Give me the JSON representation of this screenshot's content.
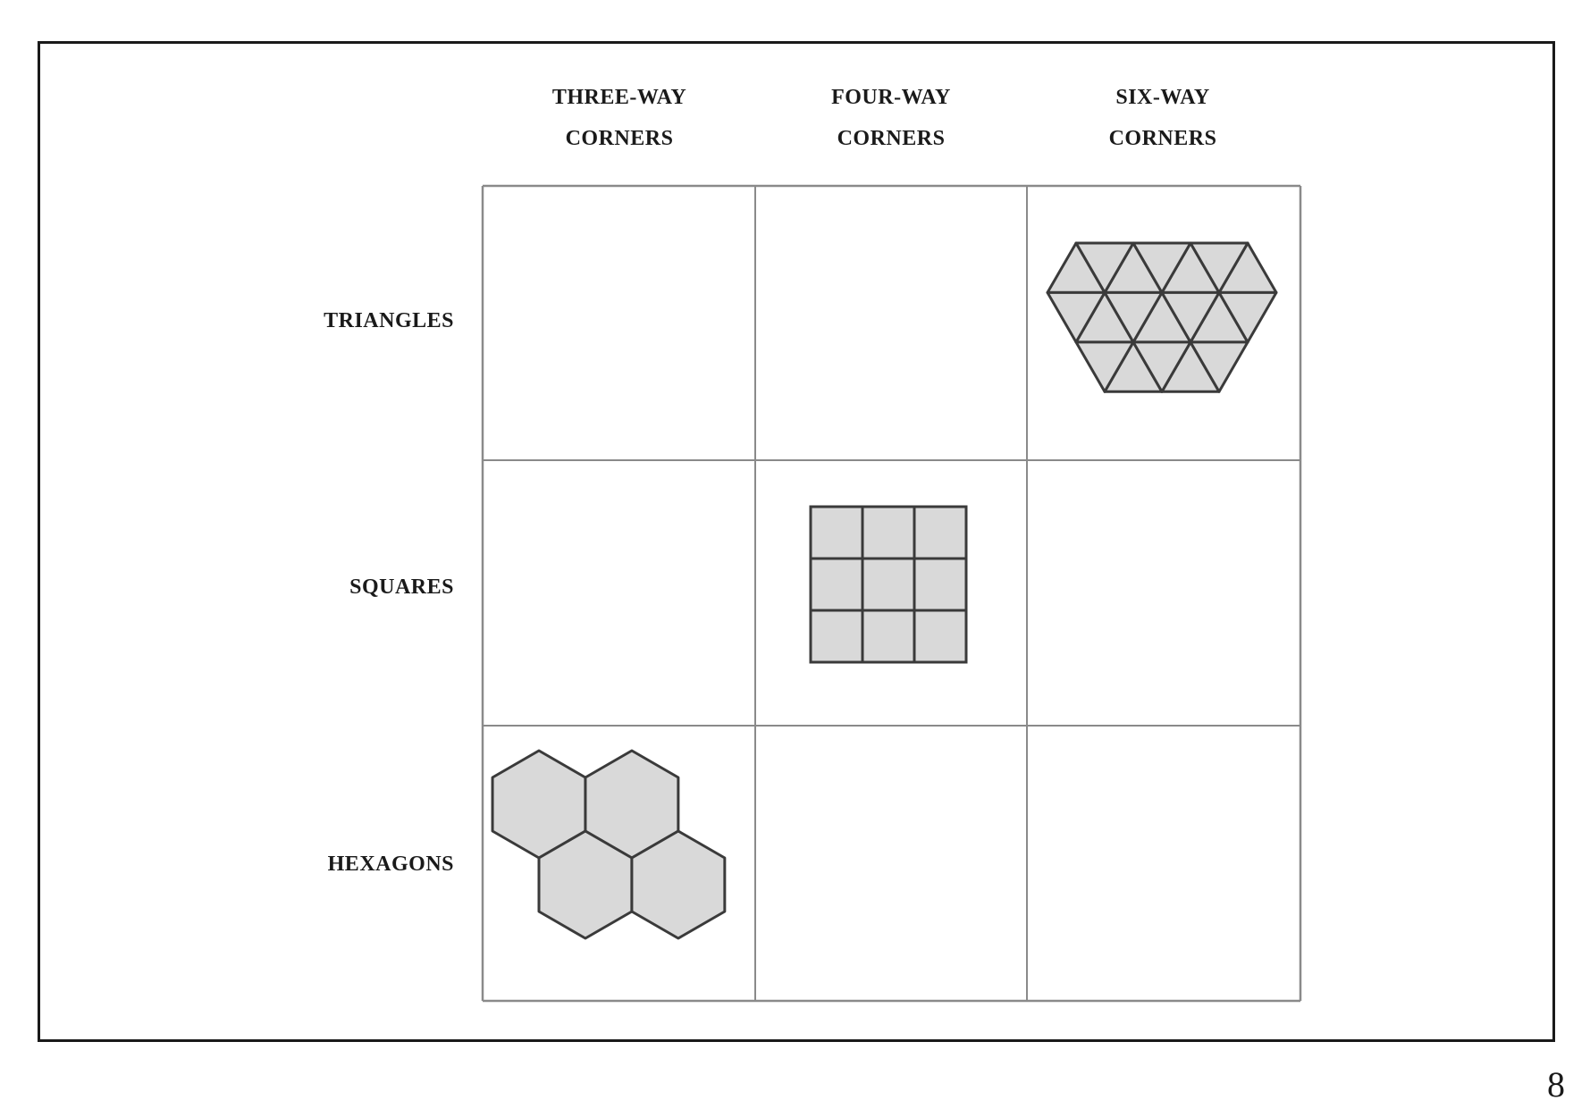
{
  "columns": [
    {
      "line1": "THREE-WAY",
      "line2": "CORNERS"
    },
    {
      "line1": "FOUR-WAY",
      "line2": "CORNERS"
    },
    {
      "line1": "SIX-WAY",
      "line2": "CORNERS"
    }
  ],
  "rows": [
    {
      "label": "TRIANGLES"
    },
    {
      "label": "SQUARES"
    },
    {
      "label": "HEXAGONS"
    }
  ],
  "tilings": [
    {
      "shape": "triangles",
      "row": 0,
      "column": 2
    },
    {
      "shape": "squares",
      "row": 1,
      "column": 1
    },
    {
      "shape": "hexagons",
      "row": 2,
      "column": 0
    }
  ],
  "colors": {
    "tile_fill": "#d9d9d9",
    "tile_stroke": "#3a3a3a",
    "grid_line": "#8a8a8a",
    "frame": "#1a1a1a"
  },
  "page_number": "8"
}
